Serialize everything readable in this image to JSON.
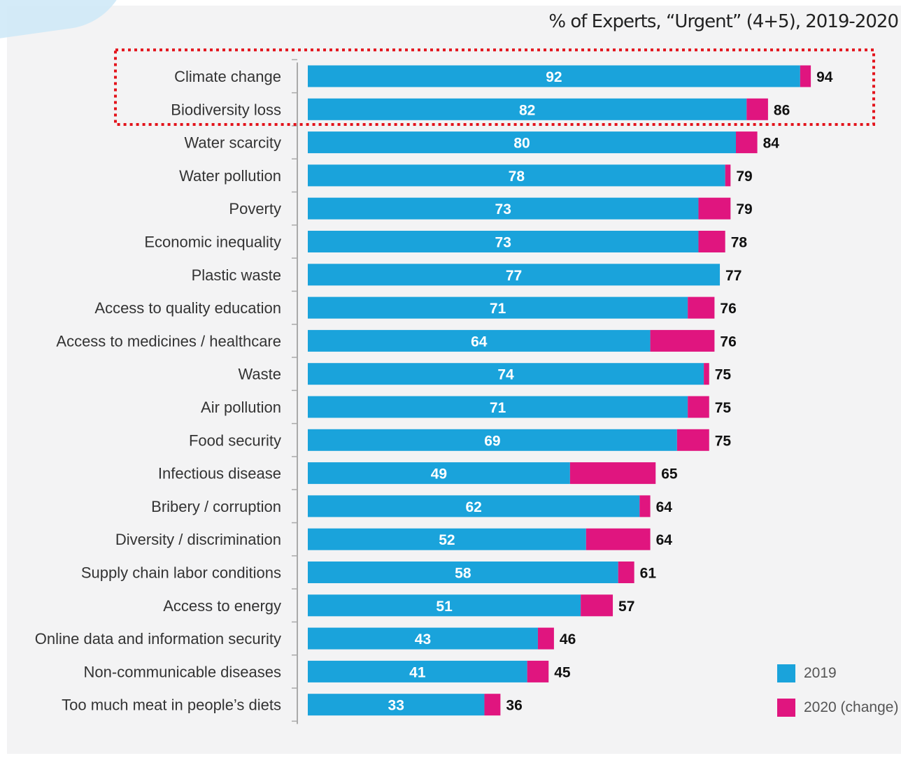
{
  "chart_data": {
    "type": "bar",
    "orientation": "horizontal",
    "stacked": true,
    "title": "% of Experts, “Urgent” (4+5), 2019-2020",
    "categories": [
      "Climate change",
      "Biodiversity loss",
      "Water scarcity",
      "Water pollution",
      "Poverty",
      "Economic inequality",
      "Plastic waste",
      "Access to quality education",
      "Access to medicines / healthcare",
      "Waste",
      "Air pollution",
      "Food security",
      "Infectious disease",
      "Bribery / corruption",
      "Diversity / discrimination",
      "Supply chain labor conditions",
      "Access to energy",
      "Online data and information security",
      "Non-communicable diseases",
      "Too much meat in people’s diets"
    ],
    "series": [
      {
        "name": "2019",
        "color": "#1aa3db",
        "values": [
          92,
          82,
          80,
          78,
          73,
          73,
          77,
          71,
          64,
          74,
          71,
          69,
          49,
          62,
          52,
          58,
          51,
          43,
          41,
          33
        ]
      },
      {
        "name": "2020 (change)",
        "color": "#e0157f",
        "values": [
          2,
          4,
          4,
          1,
          6,
          5,
          0,
          5,
          12,
          1,
          4,
          6,
          16,
          2,
          12,
          3,
          6,
          3,
          4,
          3
        ]
      }
    ],
    "totals": [
      94,
      86,
      84,
      79,
      79,
      78,
      77,
      76,
      76,
      75,
      75,
      75,
      65,
      64,
      64,
      61,
      57,
      46,
      45,
      36
    ],
    "highlight_box": {
      "categories": [
        "Climate change",
        "Biodiversity loss"
      ],
      "color": "#e3131b",
      "style": "dotted"
    },
    "legend_position": "bottom-right",
    "grid": false
  }
}
